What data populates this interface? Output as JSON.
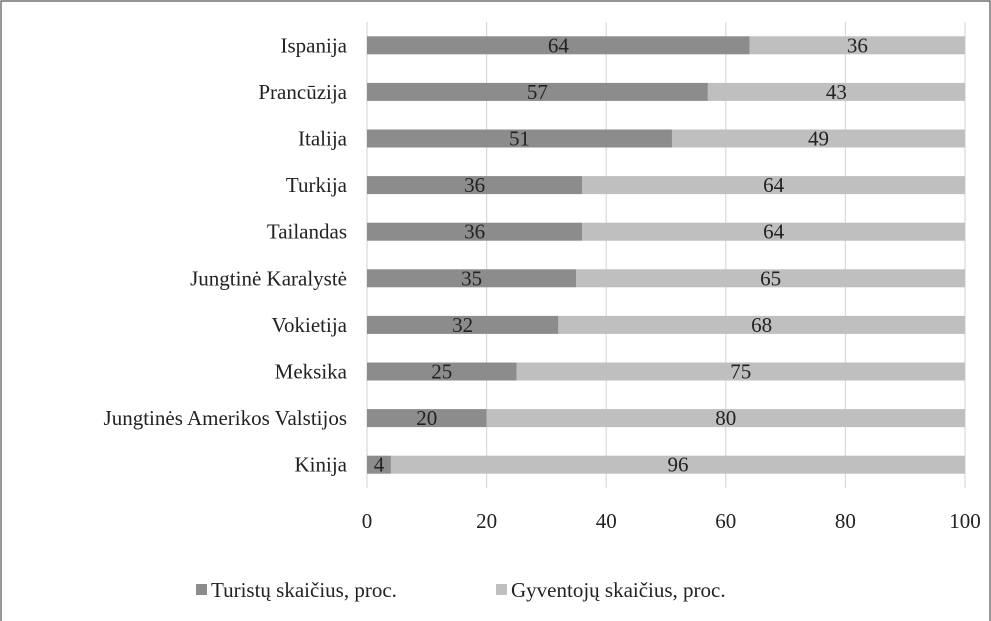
{
  "chart_data": {
    "type": "stacked_bar_horizontal",
    "categories": [
      "Ispanija",
      "Prancūzija",
      "Italija",
      "Turkija",
      "Tailandas",
      "Jungtinė Karalystė",
      "Vokietija",
      "Meksika",
      "Jungtinės Amerikos Valstijos",
      "Kinija"
    ],
    "series": [
      {
        "name": "Turistų skaičius, proc.",
        "color": "#8c8c8c",
        "values": [
          64,
          57,
          51,
          36,
          36,
          35,
          32,
          25,
          20,
          4
        ]
      },
      {
        "name": "Gyventojų skaičius, proc.",
        "color": "#bfbfbf",
        "values": [
          36,
          43,
          49,
          64,
          64,
          65,
          68,
          75,
          80,
          96
        ]
      }
    ],
    "xlim": [
      0,
      100
    ],
    "xticks": [
      0,
      20,
      40,
      60,
      80,
      100
    ],
    "grid": true,
    "legend": "bottom"
  }
}
